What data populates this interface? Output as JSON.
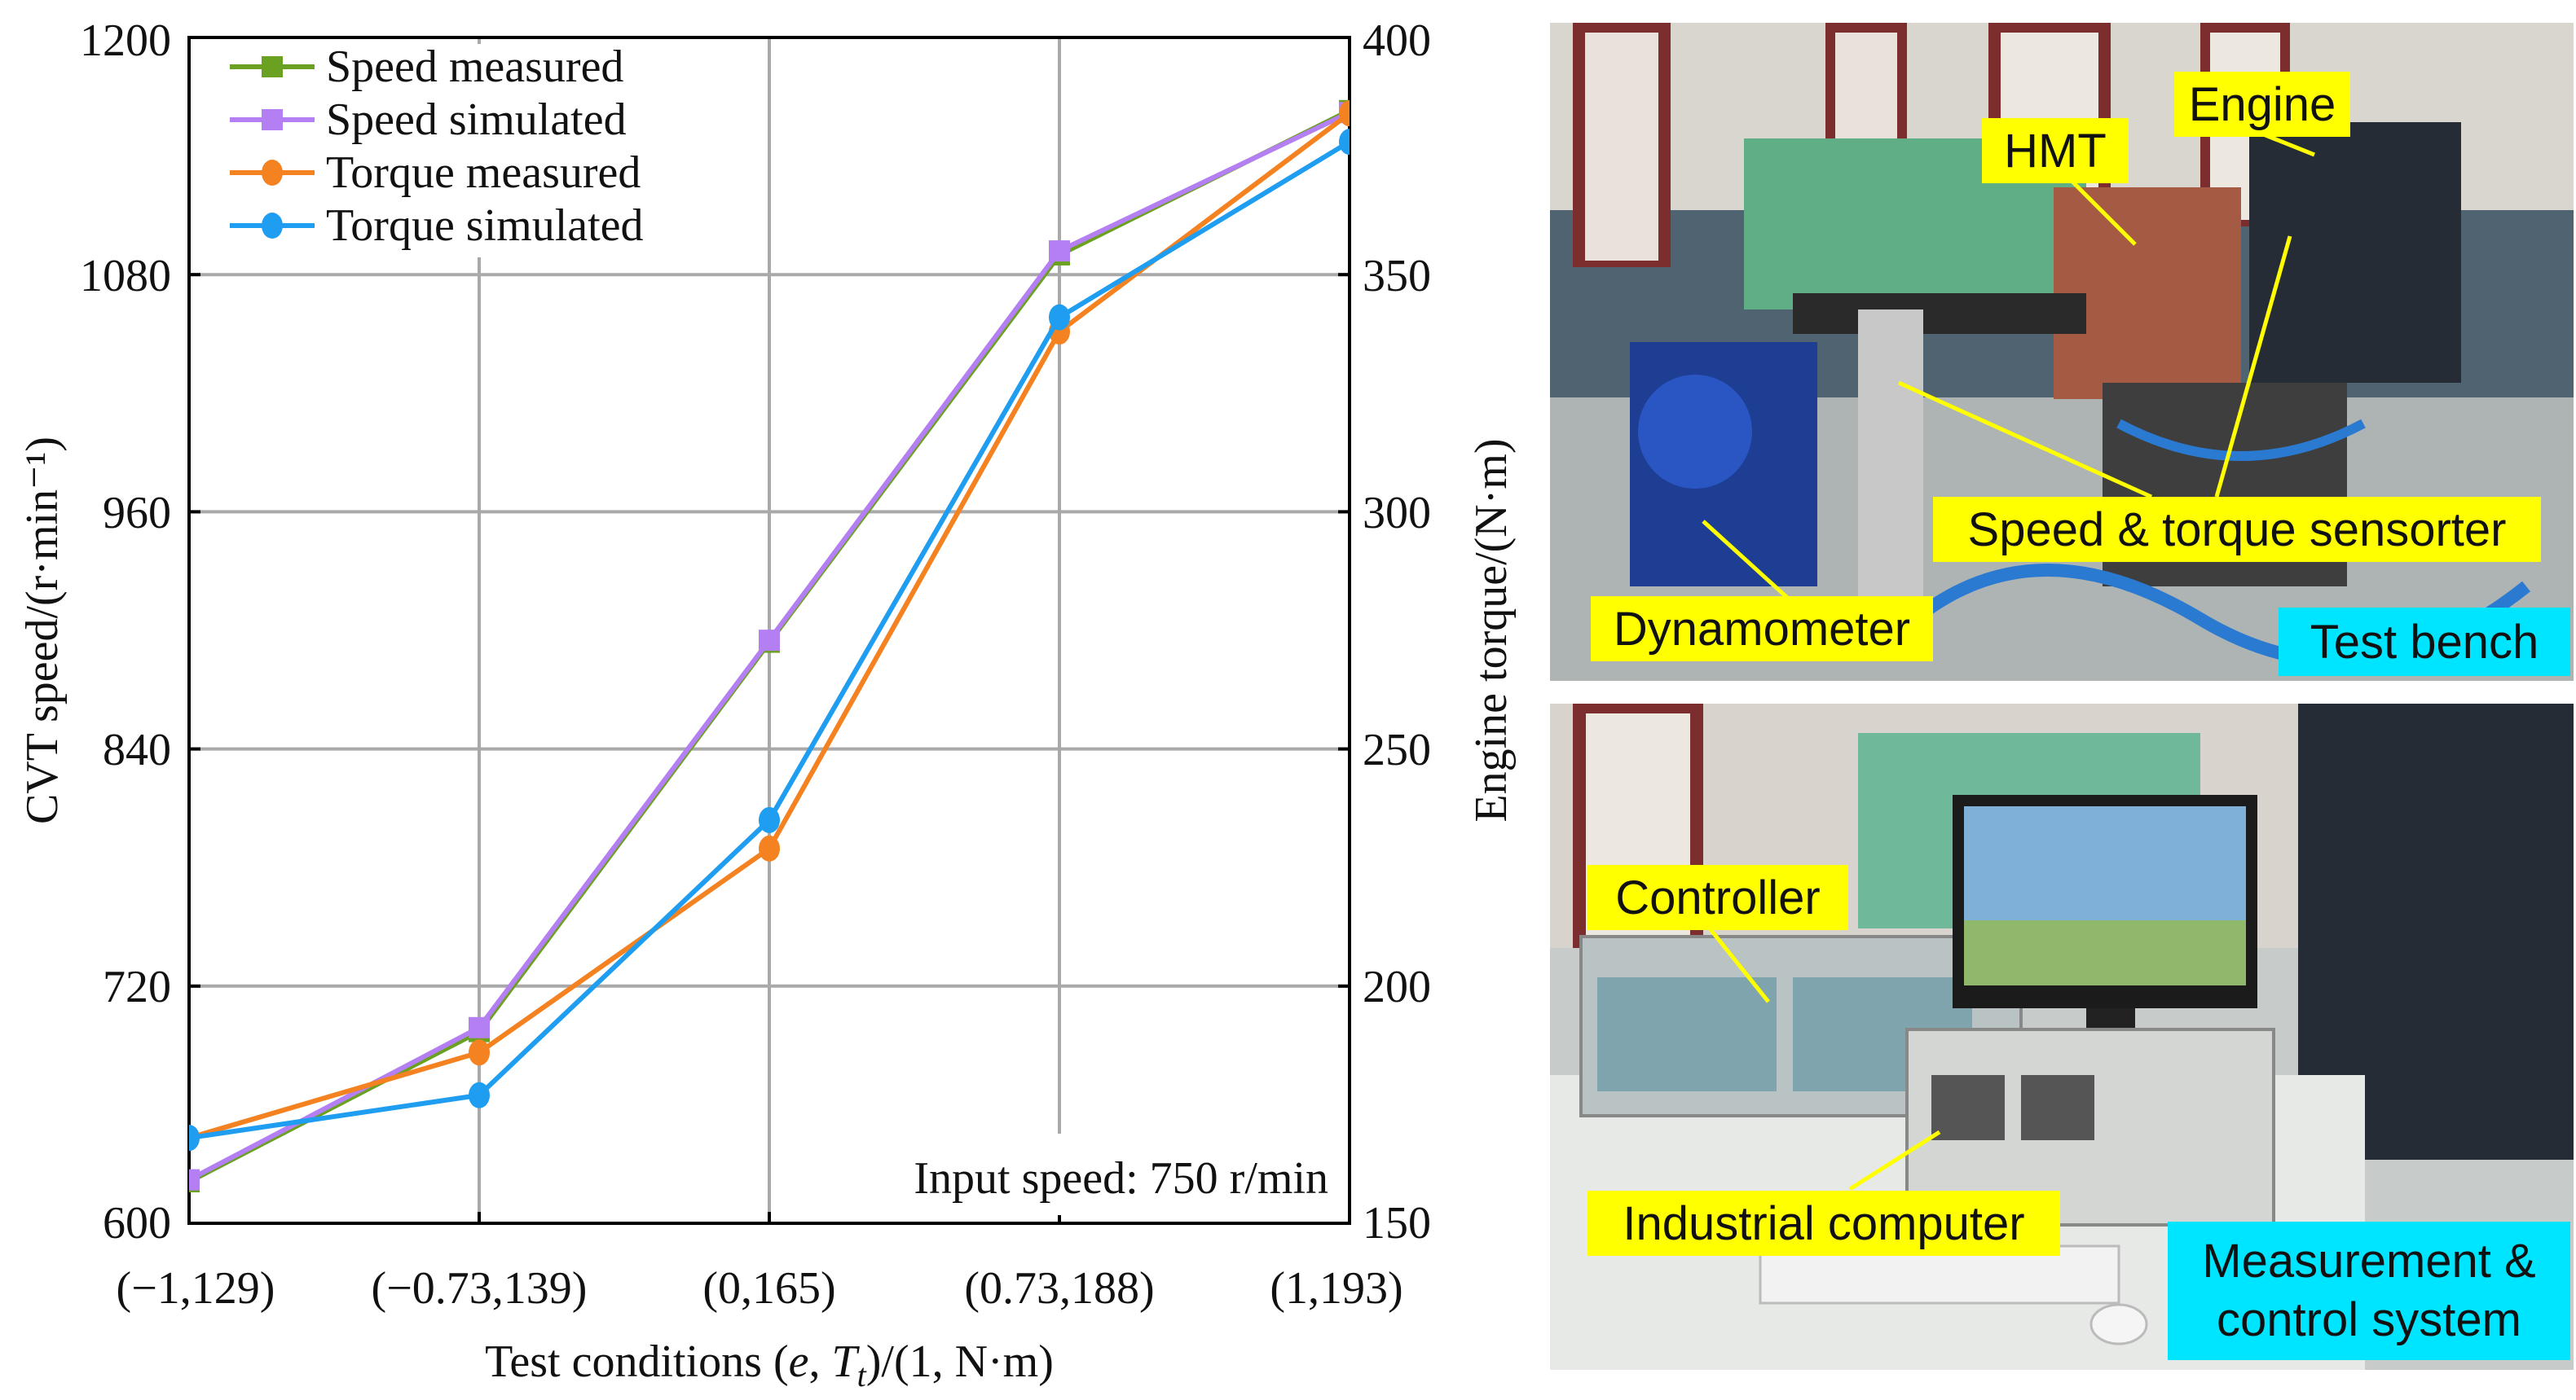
{
  "chart_data": {
    "type": "line",
    "categories": [
      "(−1,129)",
      "(−0.73,139)",
      "(0,165)",
      "(0.73,188)",
      "(1,193)"
    ],
    "xlabel_parts": [
      "Test conditions (",
      "e",
      ", ",
      "T",
      "t",
      ")/(1, N·m)"
    ],
    "ylabel": "CVT speed/(r·min⁻¹)",
    "y2label": "Engine torque/(N·m)",
    "ylim": [
      600,
      1200
    ],
    "y2lim": [
      150,
      400
    ],
    "yticks": [
      600,
      720,
      840,
      960,
      1080,
      1200
    ],
    "y2ticks": [
      150,
      200,
      250,
      300,
      350,
      400
    ],
    "grid": true,
    "legend_position": "top-left",
    "annotation": "Input speed: 750 r/min",
    "series": [
      {
        "name": "Speed measured",
        "axis": "left",
        "marker": "square",
        "color": "#6aa121",
        "values": [
          621,
          697,
          894,
          1090,
          1163
        ]
      },
      {
        "name": "Speed simulated",
        "axis": "left",
        "marker": "square",
        "color": "#b47ff2",
        "values": [
          622,
          699,
          895,
          1092,
          1162
        ]
      },
      {
        "name": "Torque measured",
        "axis": "right",
        "marker": "circle",
        "color": "#f48220",
        "values": [
          168,
          186,
          229,
          338,
          384
        ]
      },
      {
        "name": "Torque simulated",
        "axis": "right",
        "marker": "circle",
        "color": "#1f9df0",
        "values": [
          168,
          177,
          235,
          341,
          378
        ]
      }
    ]
  },
  "photos": {
    "top_labels": [
      "HMT",
      "Engine",
      "Speed & torque sensorter",
      "Dynamometer"
    ],
    "top_caption": "Test bench",
    "bottom_labels": [
      "Controller",
      "Industrial computer"
    ],
    "bottom_caption_lines": [
      "Measurement &",
      "control system"
    ],
    "label_color": "#ffff00",
    "caption_color": "#00e5ff"
  }
}
